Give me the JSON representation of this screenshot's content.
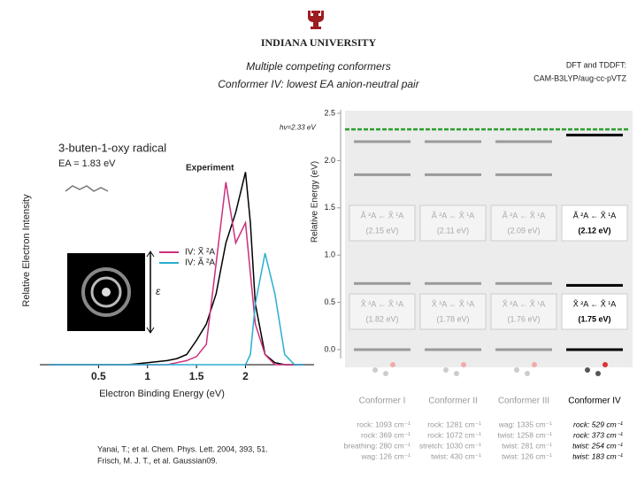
{
  "header": {
    "university": "INDIANA UNIVERSITY"
  },
  "title": [
    "Multiple competing conformers",
    "Conformer IV: lowest EA anion-neutral pair"
  ],
  "method": [
    "DFT and TDDFT:",
    "CAM-B3LYP/aug-cc-pVTZ"
  ],
  "chart_data": [
    {
      "type": "line",
      "title": "3-buten-1-oxy radical",
      "subtitle": "EA = 1.83 eV",
      "xlabel": "Electron Binding Energy (eV)",
      "ylabel": "Relative Electron Intensity",
      "annotations": [
        "ε"
      ],
      "x": [
        0,
        0.2,
        0.4,
        0.6,
        0.8,
        1.0,
        1.2,
        1.3,
        1.4,
        1.5,
        1.6,
        1.7,
        1.8,
        1.9,
        2.0,
        2.05,
        2.1,
        2.2,
        2.3,
        2.4,
        2.5,
        2.6
      ],
      "series": [
        {
          "name": "Experiment",
          "color": "#000000",
          "values": [
            0,
            0,
            0,
            0,
            0,
            0.01,
            0.02,
            0.03,
            0.05,
            0.12,
            0.2,
            0.35,
            0.6,
            0.75,
            0.95,
            0.7,
            0.3,
            0.05,
            0.01,
            0,
            0,
            0
          ]
        },
        {
          "name": "IV: X̃ ²A",
          "color": "#cc2f7e",
          "values": [
            0,
            0,
            0,
            0,
            0,
            0,
            0,
            0.01,
            0.02,
            0.04,
            0.1,
            0.5,
            0.9,
            0.6,
            0.7,
            0.45,
            0.2,
            0.05,
            0,
            0,
            0,
            0
          ]
        },
        {
          "name": "IV: Ã ²A",
          "color": "#29aecf",
          "values": [
            0,
            0,
            0,
            0,
            0,
            0,
            0,
            0,
            0,
            0,
            0,
            0,
            0,
            0,
            0,
            0.05,
            0.3,
            0.55,
            0.35,
            0.05,
            0,
            0
          ]
        }
      ],
      "xlim": [
        0,
        2.7
      ],
      "ylim": [
        0,
        1.1
      ],
      "xticks": [
        0.5,
        1,
        1.5,
        2
      ]
    },
    {
      "type": "levels",
      "ylabel": "Relative Energy (eV)",
      "ylim": [
        0,
        2.5
      ],
      "yticks": [
        {
          "value": 0,
          "label": "0.0"
        },
        {
          "value": 0.5,
          "label": "0.5"
        },
        {
          "value": 1,
          "label": "1.0"
        },
        {
          "value": 1.5,
          "label": "1.5"
        },
        {
          "value": 2,
          "label": "2.0"
        },
        {
          "value": 2.5,
          "label": "2.5"
        }
      ],
      "photon": {
        "label": "hv=2.33 eV",
        "value": 2.33,
        "color": "#2e9e2e"
      },
      "categories": [
        "Conformer I",
        "Conformer II",
        "Conformer III",
        "Conformer IV"
      ],
      "colors": [
        "#9a9a9a",
        "#9a9a9a",
        "#9a9a9a",
        "#000000"
      ],
      "levels": [
        [
          0,
          0.7,
          1.5,
          1.85,
          2.2
        ],
        [
          0,
          0.7,
          1.5,
          1.85,
          2.2
        ],
        [
          0,
          0.7,
          1.5,
          1.85,
          2.2
        ],
        [
          0,
          0.68,
          1.48,
          2.27
        ]
      ],
      "transitions": [
        {
          "upper": "Ã ²A ← X̃ ¹A",
          "upper_energy": "(2.15 eV)",
          "lower": "X̃ ²A ← X̃ ¹A",
          "lower_energy": "(1.82 eV)"
        },
        {
          "upper": "Ã ²A ← X̃ ¹A",
          "upper_energy": "(2.11 eV)",
          "lower": "X̃ ²A ← X̃ ¹A",
          "lower_energy": "(1.78 eV)"
        },
        {
          "upper": "Ã ²A ← X̃ ¹A",
          "upper_energy": "(2.09 eV)",
          "lower": "X̃ ²A ← X̃ ¹A",
          "lower_energy": "(1.76 eV)"
        },
        {
          "upper": "Ã ²A ← X̃ ¹A",
          "upper_energy": "(2.12 eV)",
          "lower": "X̃ ²A ← X̃ ¹A",
          "lower_energy": "(1.75 eV)"
        }
      ],
      "vibrations": [
        [
          "rock: 1093 cm⁻¹",
          "rock: 369 cm⁻¹",
          "breathing: 280 cm⁻¹",
          "wag: 126 cm⁻¹"
        ],
        [
          "rock: 1281 cm⁻¹",
          "rock: 1072 cm⁻¹",
          "stretch: 1030 cm⁻¹",
          "twist: 430 cm⁻¹"
        ],
        [
          "wag: 1335 cm⁻¹",
          "twist: 1258 cm⁻¹",
          "twist: 281 cm⁻¹",
          "twist: 126 cm⁻¹"
        ],
        [
          "rock: 529 cm⁻¹",
          "rock: 373 cm⁻¹",
          "twist: 254 cm⁻¹",
          "twist: 183 cm⁻¹"
        ]
      ]
    }
  ],
  "references": [
    "Yanai, T.; et al. Chem. Phys. Lett. 2004, 393, 51.",
    "Frisch, M. J. T., et al. Gaussian09."
  ]
}
